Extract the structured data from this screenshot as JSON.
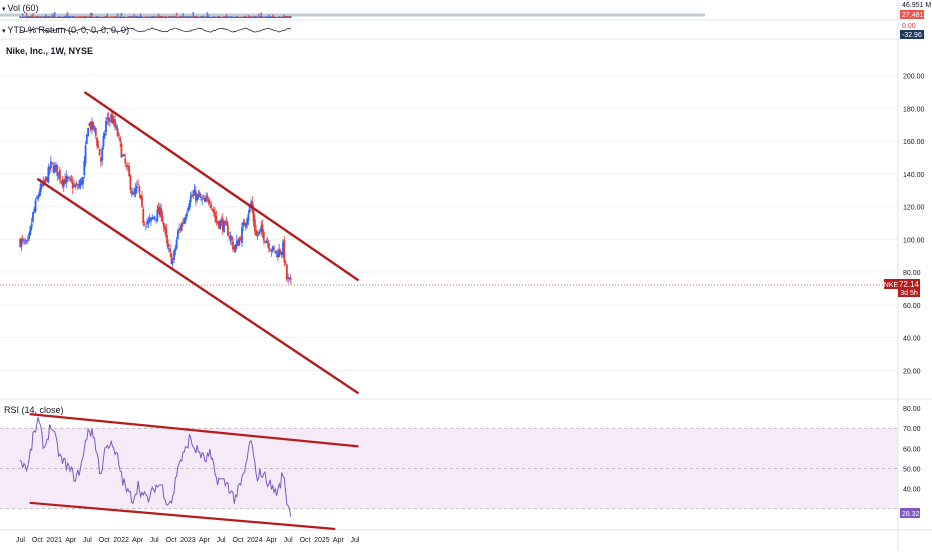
{
  "symbol": {
    "title": "Nike, Inc., 1W, NYSE",
    "ticker": "NKE",
    "last_price": "72.14",
    "countdown": "3d 5h"
  },
  "volume_pane": {
    "label": "Vol (60)",
    "scale_label": "46.951 M",
    "current_label": "27.481 M"
  },
  "ytd_pane": {
    "label": "YTD % Return (0, 0, 0, 0, 0, 0)",
    "zero_label": "0.00",
    "value_label": "-32.96"
  },
  "rsi_pane": {
    "label": "RSI (14, close)",
    "value_label": "28.32"
  },
  "colors": {
    "up": "#2962ff",
    "down": "#e53935",
    "trendline": "#b71c1c",
    "rsi_line": "#7e57c2",
    "rsi_band": "#f3e5f5",
    "price_badge": "#b71c1c"
  },
  "chart_data": [
    {
      "type": "candlestick",
      "title": "Nike, Inc., 1W, NYSE",
      "xlabel": "",
      "ylabel": "",
      "x_ticks": [
        "Jul",
        "Oct",
        "2021",
        "Apr",
        "Jul",
        "Oct",
        "2022",
        "Apr",
        "Jul",
        "Oct",
        "2023",
        "Apr",
        "Jul",
        "Oct",
        "2024",
        "Apr",
        "Jul",
        "Oct",
        "2025",
        "Apr",
        "Jul"
      ],
      "y_ticks": [
        20,
        40,
        60,
        80,
        100,
        120,
        140,
        160,
        180,
        200
      ],
      "ylim": [
        5,
        212
      ],
      "close_points": [
        [
          "2020-06-29",
          99
        ],
        [
          "2020-08-10",
          96
        ],
        [
          "2020-09-07",
          115
        ],
        [
          "2020-10-12",
          130
        ],
        [
          "2020-11-09",
          134
        ],
        [
          "2020-12-14",
          145
        ],
        [
          "2021-01-11",
          143
        ],
        [
          "2021-02-08",
          137
        ],
        [
          "2021-03-08",
          136
        ],
        [
          "2021-04-05",
          134
        ],
        [
          "2021-05-03",
          131
        ],
        [
          "2021-06-07",
          137
        ],
        [
          "2021-07-05",
          171
        ],
        [
          "2021-08-09",
          167
        ],
        [
          "2021-09-13",
          148
        ],
        [
          "2021-10-11",
          172
        ],
        [
          "2021-11-08",
          175
        ],
        [
          "2021-12-13",
          164
        ],
        [
          "2022-01-10",
          150
        ],
        [
          "2022-02-07",
          141
        ],
        [
          "2022-03-07",
          126
        ],
        [
          "2022-04-04",
          132
        ],
        [
          "2022-05-02",
          112
        ],
        [
          "2022-06-06",
          110
        ],
        [
          "2022-07-04",
          115
        ],
        [
          "2022-08-08",
          117
        ],
        [
          "2022-09-12",
          94
        ],
        [
          "2022-10-10",
          86
        ],
        [
          "2022-11-07",
          104
        ],
        [
          "2022-12-12",
          113
        ],
        [
          "2023-01-09",
          125
        ],
        [
          "2023-02-06",
          127
        ],
        [
          "2023-03-06",
          125
        ],
        [
          "2023-04-03",
          122
        ],
        [
          "2023-05-01",
          125
        ],
        [
          "2023-06-05",
          111
        ],
        [
          "2023-07-03",
          110
        ],
        [
          "2023-08-07",
          105
        ],
        [
          "2023-09-11",
          94
        ],
        [
          "2023-10-09",
          100
        ],
        [
          "2023-11-06",
          110
        ],
        [
          "2023-12-11",
          122
        ],
        [
          "2024-01-08",
          102
        ],
        [
          "2024-02-05",
          105
        ],
        [
          "2024-03-04",
          100
        ],
        [
          "2024-04-08",
          93
        ],
        [
          "2024-05-06",
          92
        ],
        [
          "2024-06-03",
          95
        ],
        [
          "2024-06-24",
          76
        ],
        [
          "2024-07-15",
          72.14
        ]
      ],
      "trendlines": [
        {
          "from": [
            "2021-06-15",
            190
          ],
          "to": [
            "2025-07-20",
            75
          ]
        },
        {
          "from": [
            "2020-10-01",
            137
          ],
          "to": [
            "2025-07-20",
            6
          ]
        }
      ],
      "last_price": 72.14
    },
    {
      "type": "line",
      "title": "RSI (14, close)",
      "xlabel": "",
      "ylabel": "",
      "y_ticks": [
        40,
        50,
        60,
        70,
        80
      ],
      "ylim": [
        20,
        84
      ],
      "band": [
        30,
        70
      ],
      "points": [
        [
          "2020-06-29",
          54
        ],
        [
          "2020-08-10",
          50
        ],
        [
          "2020-09-07",
          65
        ],
        [
          "2020-10-05",
          74
        ],
        [
          "2020-11-09",
          60
        ],
        [
          "2020-12-14",
          72
        ],
        [
          "2021-01-11",
          63
        ],
        [
          "2021-02-08",
          54
        ],
        [
          "2021-03-08",
          52
        ],
        [
          "2021-04-05",
          48
        ],
        [
          "2021-05-03",
          45
        ],
        [
          "2021-06-07",
          55
        ],
        [
          "2021-07-05",
          70
        ],
        [
          "2021-08-09",
          65
        ],
        [
          "2021-09-13",
          46
        ],
        [
          "2021-10-11",
          63
        ],
        [
          "2021-11-08",
          61
        ],
        [
          "2021-12-13",
          55
        ],
        [
          "2022-01-10",
          44
        ],
        [
          "2022-02-07",
          38
        ],
        [
          "2022-03-07",
          35
        ],
        [
          "2022-04-04",
          42
        ],
        [
          "2022-05-02",
          36
        ],
        [
          "2022-06-06",
          35
        ],
        [
          "2022-07-04",
          41
        ],
        [
          "2022-08-08",
          42
        ],
        [
          "2022-09-12",
          33
        ],
        [
          "2022-10-10",
          35
        ],
        [
          "2022-11-07",
          52
        ],
        [
          "2022-12-12",
          57
        ],
        [
          "2023-01-09",
          65
        ],
        [
          "2023-02-06",
          60
        ],
        [
          "2023-03-06",
          58
        ],
        [
          "2023-04-03",
          54
        ],
        [
          "2023-05-01",
          57
        ],
        [
          "2023-06-05",
          45
        ],
        [
          "2023-07-03",
          44
        ],
        [
          "2023-08-07",
          42
        ],
        [
          "2023-09-11",
          35
        ],
        [
          "2023-10-09",
          40
        ],
        [
          "2023-11-06",
          48
        ],
        [
          "2023-12-11",
          65
        ],
        [
          "2024-01-08",
          46
        ],
        [
          "2024-02-05",
          48
        ],
        [
          "2024-03-04",
          45
        ],
        [
          "2024-04-08",
          40
        ],
        [
          "2024-05-06",
          38
        ],
        [
          "2024-06-03",
          48
        ],
        [
          "2024-06-24",
          34
        ],
        [
          "2024-07-15",
          28.32
        ]
      ],
      "trendlines": [
        {
          "from": [
            "2020-08-20",
            77
          ],
          "to": [
            "2025-07-20",
            61
          ]
        },
        {
          "from": [
            "2020-08-20",
            33
          ],
          "to": [
            "2025-03-15",
            20
          ]
        }
      ],
      "last_value": 28.32
    }
  ]
}
